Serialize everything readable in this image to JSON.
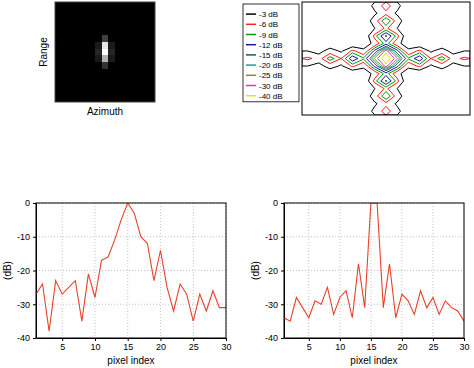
{
  "chart_data": [
    {
      "type": "heatmap",
      "xlabel": "Azimuth",
      "ylabel": "Range",
      "tick_labels": false,
      "zlim": [
        0,
        1
      ],
      "cells": [
        [
          0,
          0,
          0,
          0,
          0,
          0,
          0,
          0,
          0,
          0,
          0,
          0,
          0,
          0,
          0
        ],
        [
          0,
          0,
          0,
          0,
          0,
          0,
          0,
          0,
          0,
          0,
          0,
          0,
          0,
          0,
          0
        ],
        [
          0,
          0,
          0,
          0,
          0,
          0,
          0,
          0,
          0,
          0,
          0,
          0,
          0,
          0,
          0
        ],
        [
          0,
          0,
          0,
          0,
          0,
          0,
          0,
          0,
          0,
          0,
          0,
          0,
          0,
          0,
          0
        ],
        [
          0,
          0,
          0,
          0,
          0,
          0,
          0,
          0,
          0,
          0,
          0,
          0,
          0,
          0,
          0
        ],
        [
          0,
          0,
          0,
          0,
          0,
          0,
          0,
          0.25,
          0,
          0,
          0,
          0,
          0,
          0,
          0
        ],
        [
          0,
          0,
          0,
          0,
          0,
          0,
          0.1,
          0.9,
          0.1,
          0,
          0,
          0,
          0,
          0,
          0
        ],
        [
          0,
          0,
          0,
          0,
          0,
          0,
          0.15,
          1,
          0.15,
          0,
          0,
          0,
          0,
          0,
          0
        ],
        [
          0,
          0,
          0,
          0,
          0,
          0,
          0.1,
          0.7,
          0.1,
          0,
          0,
          0,
          0,
          0,
          0
        ],
        [
          0,
          0,
          0,
          0,
          0,
          0,
          0,
          0.2,
          0,
          0,
          0,
          0,
          0,
          0,
          0
        ],
        [
          0,
          0,
          0,
          0,
          0,
          0,
          0,
          0,
          0,
          0,
          0,
          0,
          0,
          0,
          0
        ],
        [
          0,
          0,
          0,
          0,
          0,
          0,
          0,
          0,
          0,
          0,
          0,
          0,
          0,
          0,
          0
        ],
        [
          0,
          0,
          0,
          0,
          0,
          0,
          0,
          0,
          0,
          0,
          0,
          0,
          0,
          0,
          0
        ],
        [
          0,
          0,
          0,
          0,
          0,
          0,
          0,
          0,
          0,
          0,
          0,
          0,
          0,
          0,
          0
        ],
        [
          0,
          0,
          0,
          0,
          0,
          0,
          0,
          0,
          0,
          0,
          0,
          0,
          0,
          0,
          0
        ]
      ]
    },
    {
      "type": "contour",
      "tick_labels": false,
      "legend": "left",
      "levels": [
        {
          "value": -3,
          "label": "-3 dB",
          "color": "#000000"
        },
        {
          "value": -6,
          "label": "-6 dB",
          "color": "#ff2020"
        },
        {
          "value": -9,
          "label": "-9 dB",
          "color": "#00a000"
        },
        {
          "value": -12,
          "label": "-12 dB",
          "color": "#1a1aa0"
        },
        {
          "value": -15,
          "label": "-15 dB",
          "color": "#1f5f3f"
        },
        {
          "value": -20,
          "label": "-20 dB",
          "color": "#10a0a0"
        },
        {
          "value": -25,
          "label": "-25 dB",
          "color": "#8c8c10"
        },
        {
          "value": -30,
          "label": "-30 dB",
          "color": "#d040c0"
        },
        {
          "value": -40,
          "label": "-40 dB",
          "color": "#f0e000"
        }
      ],
      "cells": [
        [
          -50,
          -50,
          -50,
          -50,
          -50,
          -50,
          -36,
          -26,
          -36,
          -50,
          -50,
          -50,
          -50,
          -50,
          -50
        ],
        [
          -50,
          -50,
          -50,
          -50,
          -50,
          -50,
          -42,
          -32,
          -42,
          -50,
          -50,
          -50,
          -50,
          -50,
          -50
        ],
        [
          -50,
          -50,
          -50,
          -50,
          -50,
          -50,
          -33,
          -20,
          -33,
          -50,
          -50,
          -50,
          -50,
          -50,
          -50
        ],
        [
          -50,
          -50,
          -50,
          -50,
          -50,
          -50,
          -40,
          -28,
          -40,
          -50,
          -50,
          -50,
          -50,
          -50,
          -50
        ],
        [
          -50,
          -50,
          -50,
          -50,
          -50,
          -50,
          -27,
          -14,
          -27,
          -50,
          -50,
          -50,
          -50,
          -50,
          -50
        ],
        [
          -50,
          -50,
          -50,
          -50,
          -50,
          -50,
          -35,
          -22,
          -35,
          -50,
          -50,
          -50,
          -50,
          -50,
          -50
        ],
        [
          -40,
          -45,
          -34,
          -42,
          -28,
          -36,
          -18,
          -4,
          -18,
          -36,
          -28,
          -42,
          -34,
          -45,
          -40
        ],
        [
          -28,
          -33,
          -22,
          -30,
          -16,
          -24,
          -8,
          0,
          -8,
          -24,
          -16,
          -30,
          -22,
          -33,
          -28
        ],
        [
          -40,
          -45,
          -34,
          -42,
          -28,
          -36,
          -18,
          -4,
          -18,
          -36,
          -28,
          -42,
          -34,
          -45,
          -40
        ],
        [
          -50,
          -50,
          -50,
          -50,
          -50,
          -50,
          -35,
          -22,
          -35,
          -50,
          -50,
          -50,
          -50,
          -50,
          -50
        ],
        [
          -50,
          -50,
          -50,
          -50,
          -50,
          -50,
          -27,
          -14,
          -27,
          -50,
          -50,
          -50,
          -50,
          -50,
          -50
        ],
        [
          -50,
          -50,
          -50,
          -50,
          -50,
          -50,
          -40,
          -28,
          -40,
          -50,
          -50,
          -50,
          -50,
          -50,
          -50
        ],
        [
          -50,
          -50,
          -50,
          -50,
          -50,
          -50,
          -33,
          -20,
          -33,
          -50,
          -50,
          -50,
          -50,
          -50,
          -50
        ],
        [
          -50,
          -50,
          -50,
          -50,
          -50,
          -50,
          -42,
          -32,
          -42,
          -50,
          -50,
          -50,
          -50,
          -50,
          -50
        ],
        [
          -50,
          -50,
          -50,
          -50,
          -50,
          -50,
          -36,
          -26,
          -36,
          -50,
          -50,
          -50,
          -50,
          -50,
          -50
        ]
      ]
    },
    {
      "type": "line",
      "xlabel": "pixel index",
      "ylabel": "(dB)",
      "color": "#e8412c",
      "grid": true,
      "x": [
        1,
        2,
        3,
        4,
        5,
        6,
        7,
        8,
        9,
        10,
        11,
        12,
        13,
        14,
        15,
        16,
        17,
        18,
        19,
        20,
        21,
        22,
        23,
        24,
        25,
        26,
        27,
        28,
        29,
        30
      ],
      "values": [
        -27,
        -24,
        -38,
        -23,
        -27,
        -25,
        -23,
        -35,
        -21,
        -28,
        -17,
        -16,
        -11,
        -5,
        0,
        -3,
        -10,
        -12,
        -23,
        -14,
        -25,
        -32,
        -24,
        -27,
        -35,
        -27,
        -32,
        -26,
        -31,
        -31
      ],
      "xlim": [
        1,
        30
      ],
      "xticks": [
        5,
        10,
        15,
        20,
        25,
        30
      ],
      "ylim": [
        -40,
        0
      ],
      "yticks": [
        0,
        -10,
        -20,
        -30,
        -40
      ]
    },
    {
      "type": "line",
      "xlabel": "pixel index",
      "ylabel": "(dB)",
      "color": "#e8412c",
      "grid": true,
      "x": [
        1,
        2,
        3,
        4,
        5,
        6,
        7,
        8,
        9,
        10,
        11,
        12,
        13,
        14,
        15,
        16,
        17,
        18,
        19,
        20,
        21,
        22,
        23,
        24,
        25,
        26,
        27,
        28,
        29,
        30
      ],
      "values": [
        -34,
        -35,
        -28,
        -31,
        -34,
        -29,
        -30,
        -25,
        -33,
        -28,
        -26,
        -34,
        -18,
        -31,
        0,
        0,
        -31,
        -18,
        -34,
        -27,
        -29,
        -33,
        -26,
        -31,
        -28,
        -33,
        -29,
        -31,
        -32,
        -35
      ],
      "xlim": [
        1,
        30
      ],
      "xticks": [
        5,
        10,
        15,
        20,
        25,
        30
      ],
      "ylim": [
        -40,
        0
      ],
      "yticks": [
        0,
        -10,
        -20,
        -30,
        -40
      ]
    }
  ]
}
